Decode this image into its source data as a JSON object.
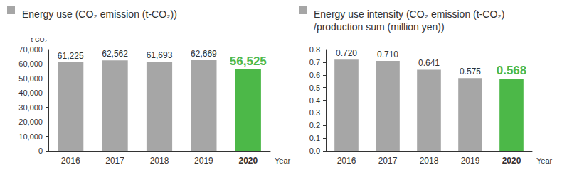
{
  "chart_data": [
    {
      "type": "bar",
      "title": "Energy use (CO₂ emission (t-CO₂))",
      "ylabel": "t-CO₂",
      "xlabel": "Year",
      "categories": [
        "2016",
        "2017",
        "2018",
        "2019",
        "2020"
      ],
      "values": [
        61225,
        62562,
        61693,
        62669,
        56525
      ],
      "value_labels": [
        "61,225",
        "62,562",
        "61,693",
        "62,669",
        "56,525"
      ],
      "colors": [
        "#a6a6a6",
        "#a6a6a6",
        "#a6a6a6",
        "#a6a6a6",
        "#4cb848"
      ],
      "ylim": [
        0,
        70000
      ],
      "yticks": [
        0,
        {
          "value": 10000,
          "label": "10,000"
        },
        {
          "value": 20000,
          "label": "20,000"
        },
        {
          "value": 30000,
          "label": "30,000"
        },
        {
          "value": 40000,
          "label": "40,000"
        },
        {
          "value": 50000,
          "label": "50,000"
        },
        {
          "value": 60000,
          "label": "60,000"
        },
        {
          "value": 70000,
          "label": "70,000"
        }
      ],
      "grid": false,
      "data_labels": true
    },
    {
      "type": "bar",
      "title": "Energy use intensity (CO₂ emission (t-CO₂)\n/production sum (million yen))",
      "xlabel": "Year",
      "categories": [
        "2016",
        "2017",
        "2018",
        "2019",
        "2020"
      ],
      "values": [
        0.72,
        0.71,
        0.641,
        0.575,
        0.568
      ],
      "value_labels": [
        "0.720",
        "0.710",
        "0.641",
        "0.575",
        "0.568"
      ],
      "colors": [
        "#a6a6a6",
        "#a6a6a6",
        "#a6a6a6",
        "#a6a6a6",
        "#4cb848"
      ],
      "ylim": [
        0,
        0.8
      ],
      "yticks": [
        {
          "value": 0,
          "label": "0.0"
        },
        {
          "value": 0.1,
          "label": "0.1"
        },
        {
          "value": 0.2,
          "label": "0.2"
        },
        {
          "value": 0.3,
          "label": "0.3"
        },
        {
          "value": 0.4,
          "label": "0.4"
        },
        {
          "value": 0.5,
          "label": "0.5"
        },
        {
          "value": 0.6,
          "label": "0.6"
        },
        {
          "value": 0.7,
          "label": "0.7"
        },
        {
          "value": 0.8,
          "label": "0.8"
        }
      ],
      "grid": false,
      "data_labels": true
    }
  ]
}
